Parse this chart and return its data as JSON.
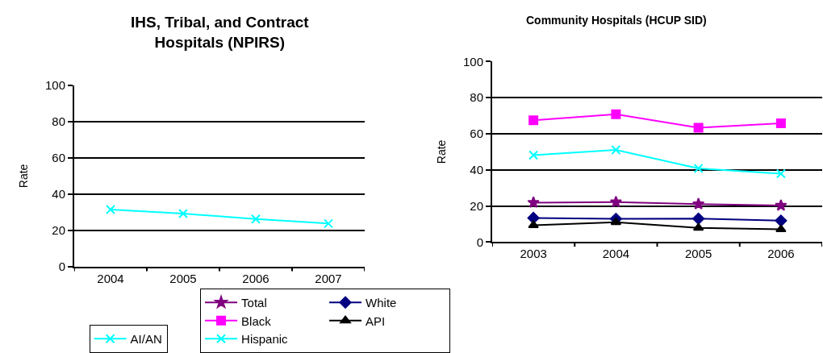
{
  "chart_data": [
    {
      "type": "line",
      "title": "IHS, Tribal, and Contract Hospitals (NPIRS)",
      "ylabel": "Rate",
      "categories": [
        "2004",
        "2005",
        "2006",
        "2007"
      ],
      "ylim": [
        0,
        100
      ],
      "yticks": [
        0,
        20,
        40,
        60,
        80,
        100
      ],
      "grid": "y",
      "legend": "bottom",
      "marker": "cross",
      "series": [
        {
          "name": "AI/AN",
          "color": "#00ffff",
          "values": [
            31.5,
            29.3,
            26.3,
            23.8
          ]
        }
      ]
    },
    {
      "type": "line",
      "title": "Community Hospitals (HCUP SID)",
      "ylabel": "Rate",
      "categories": [
        "2003",
        "2004",
        "2005",
        "2006"
      ],
      "ylim": [
        0,
        100
      ],
      "yticks": [
        0,
        20,
        40,
        60,
        80,
        100
      ],
      "grid": "y",
      "legend": "bottom",
      "series": [
        {
          "name": "Total",
          "color": "#800080",
          "marker": "star",
          "values": [
            21.9,
            22.2,
            21.1,
            20.3
          ]
        },
        {
          "name": "White",
          "color": "#000080",
          "marker": "diamond",
          "values": [
            13.4,
            12.9,
            13.0,
            11.9
          ]
        },
        {
          "name": "Black",
          "color": "#ff00ff",
          "marker": "square",
          "values": [
            67.5,
            70.8,
            63.3,
            65.8
          ]
        },
        {
          "name": "API",
          "color": "#000000",
          "marker": "triangle",
          "values": [
            9.3,
            11.0,
            7.9,
            7.1
          ]
        },
        {
          "name": "Hispanic",
          "color": "#00ffff",
          "marker": "cross",
          "values": [
            48.2,
            51.1,
            40.8,
            37.9
          ]
        }
      ]
    }
  ]
}
